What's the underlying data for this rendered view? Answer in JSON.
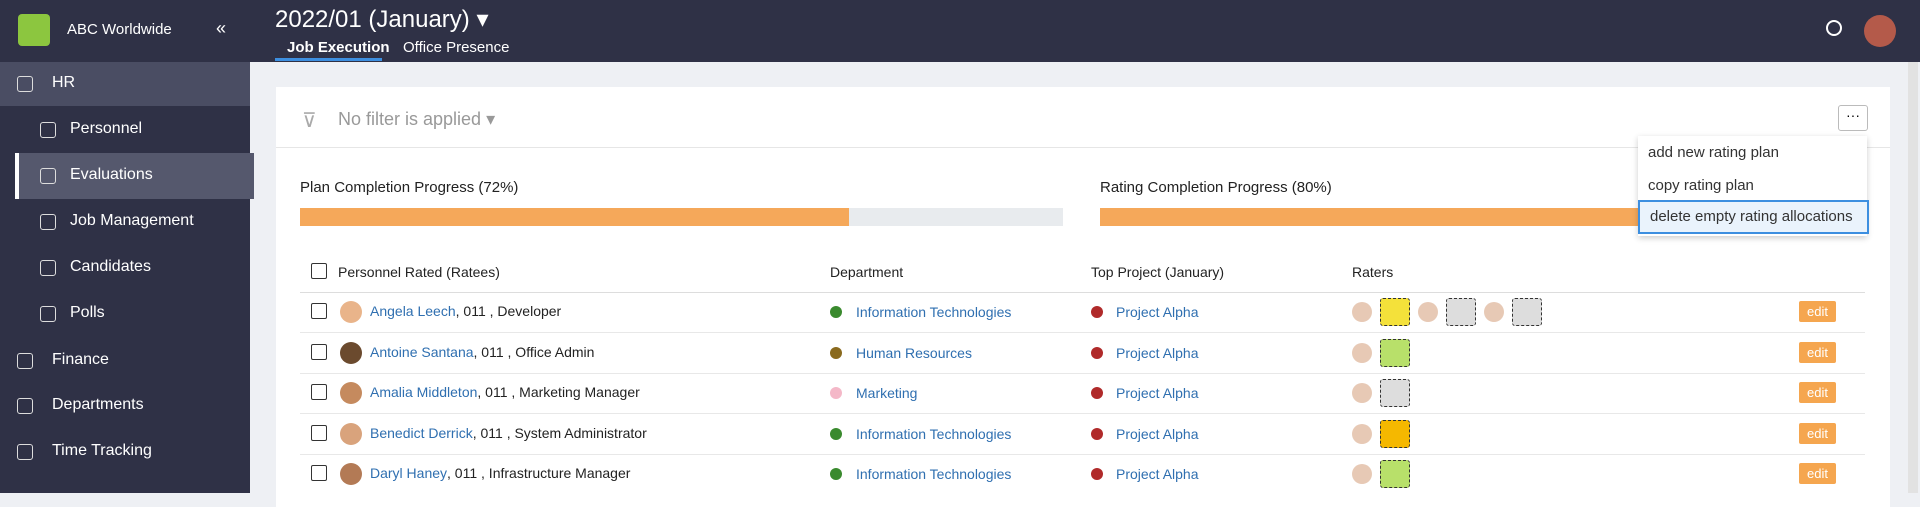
{
  "sidebar": {
    "org": "ABC Worldwide",
    "items": [
      {
        "label": "HR",
        "level": 0
      },
      {
        "label": "Personnel",
        "level": 1
      },
      {
        "label": "Evaluations",
        "level": 1
      },
      {
        "label": "Job Management",
        "level": 1
      },
      {
        "label": "Candidates",
        "level": 1
      },
      {
        "label": "Polls",
        "level": 1
      },
      {
        "label": "Finance",
        "level": 0
      },
      {
        "label": "Departments",
        "level": 0
      },
      {
        "label": "Time Tracking",
        "level": 0
      }
    ]
  },
  "header": {
    "title": "2022/01 (January)",
    "tabs": [
      "Job Execution",
      "Office Presence"
    ]
  },
  "filter": "No filter is applied",
  "menu": [
    "add new rating plan",
    "copy rating plan",
    "delete empty rating allocations"
  ],
  "progress": [
    {
      "label": "Plan Completion Progress (72%)",
      "value": 72
    },
    {
      "label": "Rating Completion Progress (80%)",
      "value": 80
    }
  ],
  "table": {
    "headers": [
      "Personnel Rated (Ratees)",
      "Department",
      "Top Project (January)",
      "Raters"
    ],
    "edit_label": "edit",
    "rows": [
      {
        "name": "Angela Leech",
        "suffix": ", 011 , Developer",
        "department": "Information Technologies",
        "dot_color": "#3a8a2e",
        "project": "Project Alpha"
      },
      {
        "name": "Antoine Santana",
        "suffix": ", 011 , Office Admin",
        "department": "Human Resources",
        "dot_color": "#8a6a1e",
        "project": "Project Alpha"
      },
      {
        "name": "Amalia Middleton",
        "suffix": ", 011 , Marketing Manager",
        "department": "Marketing",
        "dot_color": "#f4b8c8",
        "project": "Project Alpha"
      },
      {
        "name": "Benedict Derrick",
        "suffix": ", 011 , System Administrator",
        "department": "Information Technologies",
        "dot_color": "#3a8a2e",
        "project": "Project Alpha"
      },
      {
        "name": "Daryl Haney",
        "suffix": ", 011 , Infrastructure Manager",
        "department": "Information Technologies",
        "dot_color": "#3a8a2e",
        "project": "Project Alpha"
      }
    ]
  }
}
